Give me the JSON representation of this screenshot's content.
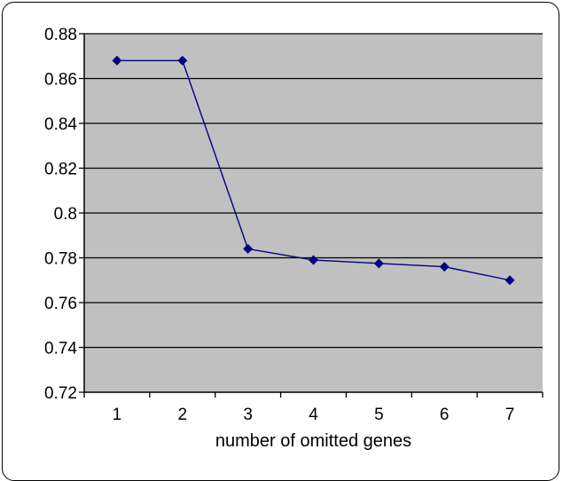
{
  "chart_data": {
    "type": "line",
    "title": "",
    "xlabel": "number of omitted genes",
    "ylabel": "",
    "categories": [
      "1",
      "2",
      "3",
      "4",
      "5",
      "6",
      "7"
    ],
    "series": [
      {
        "values": [
          0.868,
          0.868,
          0.784,
          0.779,
          0.7775,
          0.776,
          0.77
        ]
      }
    ],
    "ylim": [
      0.72,
      0.88
    ],
    "yticks": [
      "0.72",
      "0.74",
      "0.76",
      "0.78",
      "0.8",
      "0.82",
      "0.84",
      "0.86",
      "0.88"
    ],
    "grid": true,
    "legend": "none",
    "colors": {
      "plot_background": "#c0c0c0",
      "line": "#000080",
      "marker": "#000080",
      "gridline": "#000000"
    }
  }
}
